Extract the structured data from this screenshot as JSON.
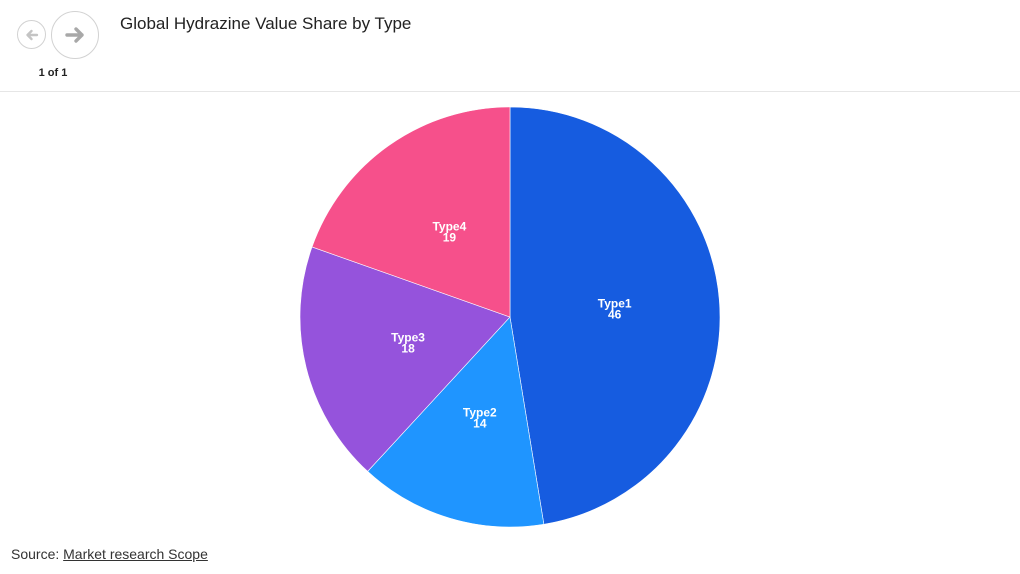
{
  "header": {
    "title": "Global Hydrazine Value Share by Type",
    "pager": "1 of 1",
    "prev_icon": "arrow-left-icon",
    "next_icon": "arrow-right-icon"
  },
  "footer": {
    "source_label": "Source: ",
    "source_link": "Market research Scope"
  },
  "chart_data": {
    "type": "pie",
    "title": "Global Hydrazine Value Share by Type",
    "categories": [
      "Type1",
      "Type2",
      "Type3",
      "Type4"
    ],
    "values": [
      46,
      14,
      18,
      19
    ],
    "colors": [
      "#165ce0",
      "#1f95ff",
      "#9553dc",
      "#f6508b"
    ],
    "start": "12 o'clock",
    "direction": "clockwise"
  }
}
